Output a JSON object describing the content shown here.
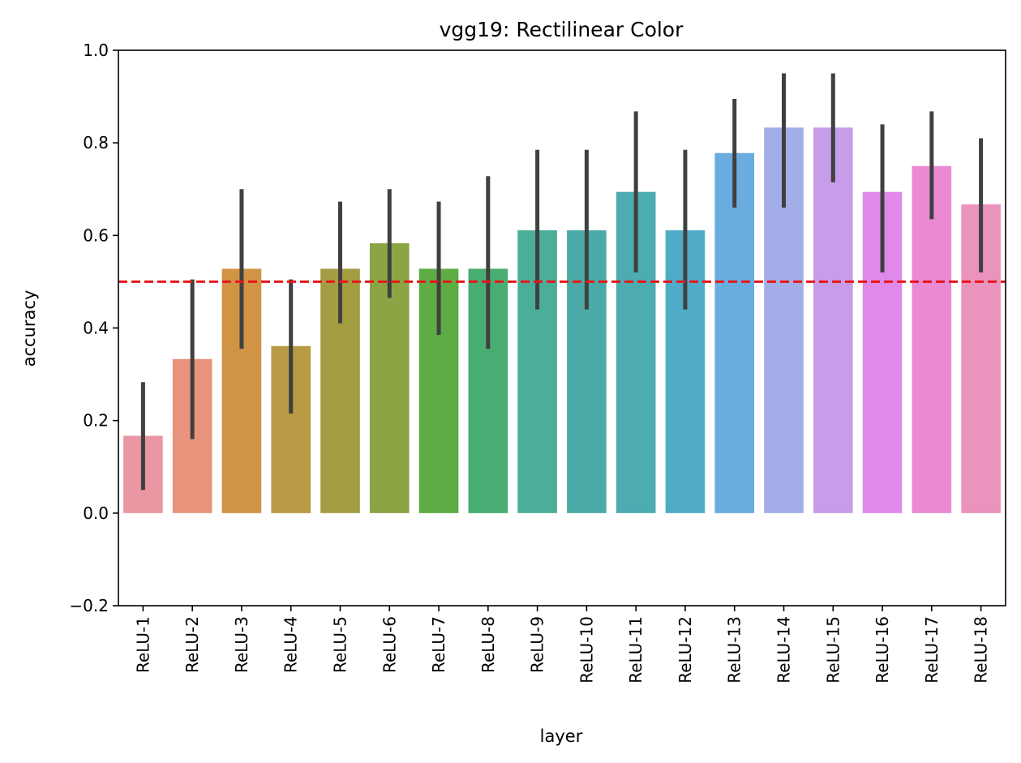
{
  "chart_data": {
    "type": "bar",
    "title": "vgg19: Rectilinear Color",
    "xlabel": "layer",
    "ylabel": "accuracy",
    "ylim": [
      -0.2,
      1.0
    ],
    "yticks": [
      "−0.2",
      "0.0",
      "0.2",
      "0.4",
      "0.6",
      "0.8",
      "1.0"
    ],
    "ytick_values": [
      -0.2,
      0.0,
      0.2,
      0.4,
      0.6,
      0.8,
      1.0
    ],
    "categories": [
      "ReLU-1",
      "ReLU-2",
      "ReLU-3",
      "ReLU-4",
      "ReLU-5",
      "ReLU-6",
      "ReLU-7",
      "ReLU-8",
      "ReLU-9",
      "ReLU-10",
      "ReLU-11",
      "ReLU-12",
      "ReLU-13",
      "ReLU-14",
      "ReLU-15",
      "ReLU-16",
      "ReLU-17",
      "ReLU-18"
    ],
    "values": [
      0.167,
      0.333,
      0.528,
      0.361,
      0.528,
      0.583,
      0.528,
      0.528,
      0.611,
      0.611,
      0.694,
      0.611,
      0.778,
      0.833,
      0.833,
      0.694,
      0.75,
      0.667
    ],
    "error_low": [
      0.05,
      0.16,
      0.355,
      0.215,
      0.41,
      0.465,
      0.385,
      0.355,
      0.44,
      0.44,
      0.52,
      0.44,
      0.66,
      0.66,
      0.715,
      0.52,
      0.635,
      0.52
    ],
    "error_high": [
      0.283,
      0.505,
      0.7,
      0.505,
      0.673,
      0.7,
      0.673,
      0.728,
      0.785,
      0.785,
      0.868,
      0.785,
      0.895,
      0.95,
      0.95,
      0.84,
      0.868,
      0.81
    ],
    "colors": [
      "#ea96a3",
      "#e8947c",
      "#d19445",
      "#b89a44",
      "#a49d42",
      "#8ba544",
      "#5dad44",
      "#48ad73",
      "#4aae99",
      "#4baaa5",
      "#4dabb2",
      "#4fabc8",
      "#69acdf",
      "#a3ade8",
      "#c79ce8",
      "#df8ae9",
      "#e98ad3",
      "#ea93bc"
    ],
    "reference_line": {
      "y": 0.5,
      "color": "#e8161a",
      "style": "dashed"
    },
    "errorbar_color": "#404040",
    "grid": false
  }
}
